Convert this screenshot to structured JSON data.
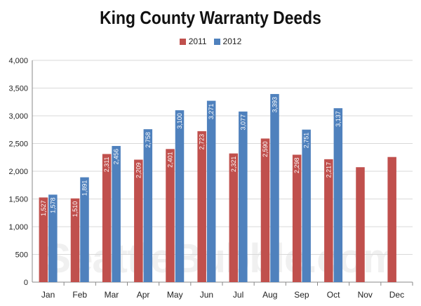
{
  "chart_data": {
    "type": "bar",
    "title": "King County Warranty Deeds",
    "categories": [
      "Jan",
      "Feb",
      "Mar",
      "Apr",
      "May",
      "Jun",
      "Jul",
      "Aug",
      "Sep",
      "Oct",
      "Nov",
      "Dec"
    ],
    "series": [
      {
        "name": "2011",
        "color": "#c0504d",
        "values": [
          1527,
          1510,
          2311,
          2209,
          2401,
          2723,
          2321,
          2590,
          2298,
          2217,
          2073,
          2257
        ],
        "labels": [
          "1,527",
          "1,510",
          "2,311",
          "2,209",
          "2,401",
          "2,723",
          "2,321",
          "2,590",
          "2,298",
          "2,217",
          "",
          ""
        ]
      },
      {
        "name": "2012",
        "color": "#4f81bd",
        "values": [
          1578,
          1891,
          2456,
          2758,
          3100,
          3271,
          3077,
          3393,
          2751,
          3137,
          null,
          null
        ],
        "labels": [
          "1,578",
          "1,891",
          "2,456",
          "2,758",
          "3,100",
          "3,271",
          "3,077",
          "3,393",
          "2,751",
          "3,137",
          "",
          ""
        ]
      }
    ],
    "yticks": [
      "0",
      "500",
      "1,000",
      "1,500",
      "2,000",
      "2,500",
      "3,000",
      "3,500",
      "4,000"
    ],
    "ylim": [
      0,
      4000
    ],
    "grid": true,
    "legend_position": "top-center"
  },
  "watermark": "SeattleBubble.com"
}
